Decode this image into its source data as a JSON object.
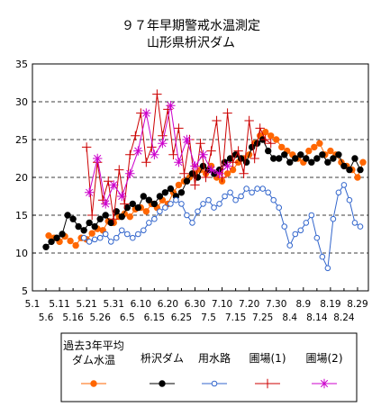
{
  "chart_data": {
    "type": "line",
    "title": "９７年早期警戒水温測定",
    "subtitle": "山形県枡沢ダム",
    "xlabel": "",
    "ylabel": "",
    "ylim": [
      5,
      35
    ],
    "yticks": [
      5,
      10,
      15,
      20,
      25,
      30,
      35
    ],
    "grid": "horizontal-dashed",
    "legend_position": "bottom",
    "xticks_row1": [
      "5.1",
      "5.11",
      "5.21",
      "5.31",
      "6.10",
      "6.20",
      "6.30",
      "7.10",
      "7.20",
      "7.30",
      "8.9",
      "8.19",
      "8.29"
    ],
    "xticks_row2": [
      "5.6",
      "5.16",
      "5.26",
      "6.5",
      "6.15",
      "6.25",
      "7.5",
      "7.15",
      "7.25",
      "8.4",
      "8.14",
      "8.24"
    ],
    "x_start": "5.1",
    "x_end": "9.2",
    "series": [
      {
        "name": "過去3年平均\nダム水温",
        "color": "#ff6600",
        "marker": "filled-circle",
        "x": [
          "5.7",
          "5.9",
          "5.11",
          "5.13",
          "5.15",
          "5.17",
          "5.19",
          "5.21",
          "5.23",
          "5.25",
          "5.27",
          "5.29",
          "5.31",
          "6.2",
          "6.4",
          "6.6",
          "6.8",
          "6.10",
          "6.12",
          "6.14",
          "6.16",
          "6.18",
          "6.20",
          "6.22",
          "6.24",
          "6.26",
          "6.28",
          "6.30",
          "7.2",
          "7.4",
          "7.6",
          "7.8",
          "7.10",
          "7.12",
          "7.14",
          "7.16",
          "7.18",
          "7.20",
          "7.22",
          "7.24",
          "7.26",
          "7.28",
          "7.30",
          "8.1",
          "8.3",
          "8.5",
          "8.7",
          "8.9",
          "8.11",
          "8.13",
          "8.15",
          "8.17",
          "8.19",
          "8.21",
          "8.23",
          "8.25",
          "8.27",
          "8.29",
          "8.31"
        ],
        "values": [
          12.3,
          12.0,
          11.5,
          12.2,
          11.6,
          11.0,
          12.0,
          11.8,
          12.6,
          13.2,
          13.0,
          14.2,
          14.0,
          14.8,
          15.2,
          14.8,
          15.8,
          16.0,
          15.5,
          16.5,
          16.0,
          17.0,
          16.5,
          18.0,
          19.0,
          19.5,
          20.0,
          20.5,
          21.0,
          20.5,
          21.5,
          20.0,
          19.5,
          20.5,
          21.0,
          22.0,
          22.5,
          23.0,
          24.5,
          25.5,
          26.0,
          25.5,
          25.0,
          24.0,
          23.5,
          23.0,
          22.5,
          22.0,
          23.5,
          24.0,
          24.5,
          23.0,
          23.5,
          23.0,
          22.0,
          21.5,
          21.0,
          20.0,
          22.0
        ]
      },
      {
        "name": "枡沢ダム",
        "color": "#000000",
        "marker": "filled-circle",
        "x": [
          "5.6",
          "5.8",
          "5.10",
          "5.12",
          "5.14",
          "5.16",
          "5.18",
          "5.20",
          "5.22",
          "5.24",
          "5.26",
          "5.28",
          "5.30",
          "6.1",
          "6.3",
          "6.5",
          "6.7",
          "6.9",
          "6.11",
          "6.13",
          "6.15",
          "6.17",
          "6.19",
          "6.21",
          "6.23",
          "6.25",
          "6.27",
          "6.29",
          "7.1",
          "7.3",
          "7.5",
          "7.7",
          "7.9",
          "7.11",
          "7.13",
          "7.15",
          "7.17",
          "7.19",
          "7.21",
          "7.23",
          "7.25",
          "7.27",
          "7.29",
          "7.31",
          "8.2",
          "8.4",
          "8.6",
          "8.8",
          "8.10",
          "8.12",
          "8.14",
          "8.16",
          "8.18",
          "8.20",
          "8.22",
          "8.24",
          "8.26",
          "8.28",
          "8.30"
        ],
        "values": [
          10.8,
          11.5,
          12.0,
          12.5,
          15.0,
          14.5,
          13.5,
          13.0,
          14.0,
          13.5,
          14.5,
          15.0,
          14.0,
          15.5,
          14.8,
          16.0,
          16.5,
          16.0,
          17.5,
          17.0,
          16.5,
          17.5,
          18.0,
          18.5,
          17.5,
          18.0,
          19.5,
          20.5,
          20.0,
          21.5,
          21.0,
          20.5,
          21.0,
          22.0,
          22.5,
          23.0,
          22.5,
          22.0,
          24.0,
          24.5,
          25.0,
          23.5,
          22.5,
          22.5,
          23.0,
          22.0,
          22.5,
          23.0,
          22.5,
          22.0,
          22.5,
          23.0,
          22.0,
          22.5,
          23.0,
          21.5,
          21.0,
          22.5,
          21.0
        ]
      },
      {
        "name": "用水路",
        "color": "#3366cc",
        "marker": "hollow-circle",
        "x": [
          "5.20",
          "5.22",
          "5.24",
          "5.26",
          "5.28",
          "5.30",
          "6.1",
          "6.3",
          "6.5",
          "6.7",
          "6.9",
          "6.11",
          "6.13",
          "6.15",
          "6.17",
          "6.19",
          "6.21",
          "6.23",
          "6.25",
          "6.27",
          "6.29",
          "7.1",
          "7.3",
          "7.5",
          "7.7",
          "7.9",
          "7.11",
          "7.13",
          "7.15",
          "7.17",
          "7.19",
          "7.21",
          "7.23",
          "7.25",
          "7.27",
          "7.29",
          "7.31",
          "8.2",
          "8.4",
          "8.6",
          "8.8",
          "8.10",
          "8.12",
          "8.14",
          "8.16",
          "8.18",
          "8.20",
          "8.22",
          "8.24",
          "8.26",
          "8.28",
          "8.30"
        ],
        "values": [
          12.0,
          11.5,
          11.8,
          12.0,
          12.5,
          11.5,
          12.0,
          13.0,
          12.5,
          12.0,
          12.5,
          13.0,
          14.0,
          14.5,
          15.5,
          16.0,
          16.5,
          17.0,
          16.5,
          15.0,
          14.0,
          15.5,
          16.5,
          17.0,
          16.0,
          16.5,
          17.5,
          18.0,
          17.0,
          17.5,
          18.5,
          18.0,
          18.5,
          18.5,
          18.0,
          17.0,
          16.0,
          13.5,
          11.0,
          12.5,
          13.0,
          14.0,
          15.0,
          12.0,
          9.5,
          8.0,
          14.5,
          18.0,
          19.0,
          17.0,
          14.0,
          13.5
        ]
      },
      {
        "name": "圃場(1)",
        "color": "#cc0000",
        "marker": "plus",
        "x": [
          "5.21",
          "5.23",
          "5.25",
          "5.27",
          "5.29",
          "5.31",
          "6.2",
          "6.4",
          "6.6",
          "6.8",
          "6.10",
          "6.12",
          "6.14",
          "6.16",
          "6.18",
          "6.20",
          "6.22",
          "6.24",
          "6.26",
          "6.28",
          "6.30",
          "7.2",
          "7.4",
          "7.6",
          "7.8",
          "7.10",
          "7.12",
          "7.14",
          "7.16",
          "7.18",
          "7.20",
          "7.22",
          "7.24",
          "7.26",
          "7.28"
        ],
        "values": [
          24.0,
          15.0,
          22.0,
          17.0,
          19.5,
          14.5,
          21.0,
          16.5,
          23.0,
          25.5,
          28.5,
          22.0,
          24.0,
          31.0,
          25.5,
          29.0,
          23.0,
          26.5,
          20.5,
          25.0,
          19.0,
          24.5,
          20.0,
          23.5,
          27.5,
          20.0,
          28.5,
          22.0,
          23.5,
          20.5,
          27.5,
          22.5,
          26.5,
          25.0,
          24.5
        ]
      },
      {
        "name": "圃場(2)",
        "color": "#cc00cc",
        "marker": "asterisk",
        "x": [
          "5.22",
          "5.25",
          "5.28",
          "5.31",
          "6.3",
          "6.6",
          "6.9",
          "6.12",
          "6.15",
          "6.18",
          "6.21",
          "6.24",
          "6.27",
          "6.30",
          "7.3",
          "7.6",
          "7.9",
          "7.12"
        ],
        "values": [
          18.0,
          22.5,
          16.5,
          19.0,
          17.5,
          20.5,
          23.5,
          28.5,
          23.0,
          24.5,
          29.5,
          22.0,
          25.0,
          21.5,
          23.0,
          21.0,
          20.5,
          21.5
        ]
      }
    ]
  }
}
